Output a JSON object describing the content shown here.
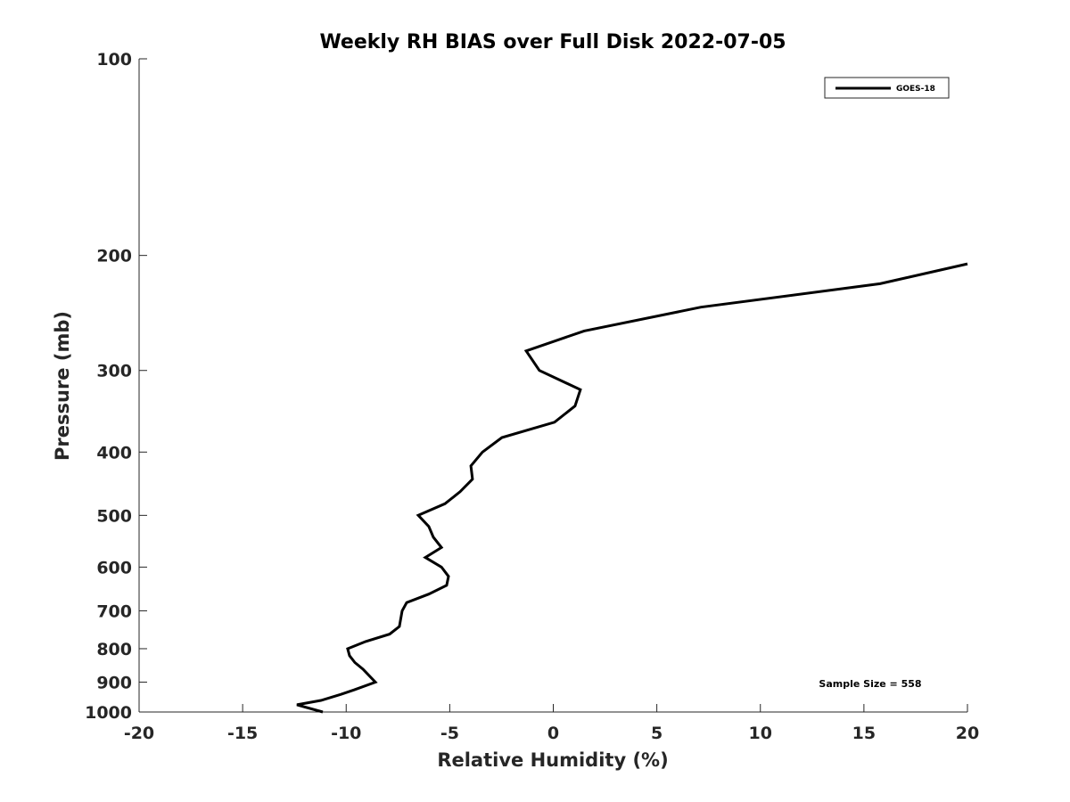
{
  "chart_data": {
    "type": "line",
    "title": "Weekly RH BIAS over Full Disk 2022-07-05",
    "xlabel": "Relative Humidity (%)",
    "ylabel": "Pressure (mb)",
    "xlim": [
      -20,
      20
    ],
    "ylim": [
      100,
      1000
    ],
    "yscale": "log",
    "yreverse": true,
    "grid": false,
    "xticks": [
      "-20",
      "-15",
      "-10",
      "-5",
      "0",
      "5",
      "10",
      "15",
      "20"
    ],
    "yticks": [
      "100",
      "200",
      "300",
      "400",
      "500",
      "600",
      "700",
      "800",
      "900",
      "1000"
    ],
    "legend": {
      "placement": "top-right",
      "entries": [
        "GOES-18"
      ]
    },
    "annotation": "Sample Size = 558",
    "series": [
      {
        "name": "GOES-18",
        "color": "#000000",
        "x": [
          20.0,
          15.78,
          7.13,
          1.49,
          -1.31,
          -0.67,
          1.31,
          1.05,
          0.06,
          -2.48,
          -3.42,
          -3.98,
          -3.9,
          -4.5,
          -5.23,
          -6.52,
          -6.01,
          -5.79,
          -5.4,
          -6.18,
          -5.4,
          -5.06,
          -5.15,
          -6.01,
          -7.08,
          -7.3,
          -7.43,
          -7.9,
          -9.06,
          -9.93,
          -9.84,
          -9.58,
          -9.19,
          -8.59,
          -9.62,
          -10.27,
          -11.22,
          -12.38,
          -11.13
        ],
        "pressure": [
          206,
          221,
          240,
          261,
          280,
          300,
          321,
          340,
          360,
          380,
          400,
          420,
          440,
          460,
          480,
          500,
          520,
          540,
          560,
          580,
          600,
          620,
          640,
          660,
          680,
          700,
          740,
          760,
          780,
          800,
          820,
          840,
          860,
          900,
          925,
          940,
          960,
          975,
          1000
        ]
      }
    ]
  }
}
